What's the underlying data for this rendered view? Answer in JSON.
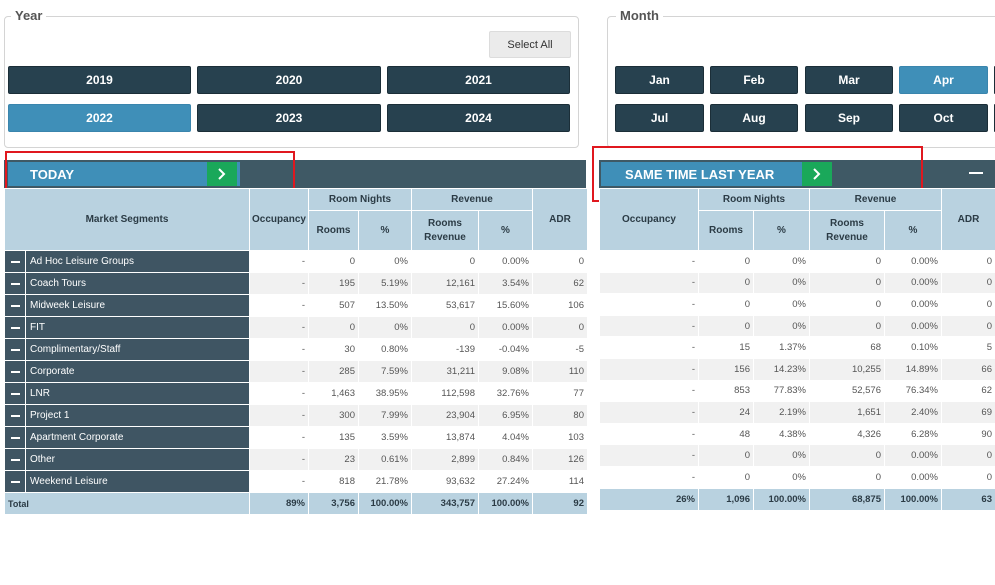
{
  "year": {
    "legend": "Year",
    "select_all": "Select All",
    "buttons": [
      "2019",
      "2020",
      "2021",
      "2022",
      "2023",
      "2024"
    ],
    "active": "2022"
  },
  "month": {
    "legend": "Month",
    "buttons": [
      "Jan",
      "Feb",
      "Mar",
      "Apr",
      "Jul",
      "Aug",
      "Sep",
      "Oct"
    ],
    "active": "Apr"
  },
  "today": {
    "title": "TODAY",
    "headers": {
      "market_segments": "Market Segments",
      "occupancy": "Occupancy",
      "room_nights": "Room Nights",
      "revenue": "Revenue",
      "rooms": "Rooms",
      "pct": "%",
      "rooms_revenue": "Rooms Revenue",
      "adr": "ADR"
    },
    "rows": [
      {
        "segment": "Ad Hoc Leisure Groups",
        "occupancy": "-",
        "rooms": "0",
        "rooms_pct": "0%",
        "revenue": "0",
        "revenue_pct": "0.00%",
        "adr": "0"
      },
      {
        "segment": "Coach Tours",
        "occupancy": "-",
        "rooms": "195",
        "rooms_pct": "5.19%",
        "revenue": "12,161",
        "revenue_pct": "3.54%",
        "adr": "62"
      },
      {
        "segment": "Midweek Leisure",
        "occupancy": "-",
        "rooms": "507",
        "rooms_pct": "13.50%",
        "revenue": "53,617",
        "revenue_pct": "15.60%",
        "adr": "106"
      },
      {
        "segment": "FIT",
        "occupancy": "-",
        "rooms": "0",
        "rooms_pct": "0%",
        "revenue": "0",
        "revenue_pct": "0.00%",
        "adr": "0"
      },
      {
        "segment": "Complimentary/Staff",
        "occupancy": "-",
        "rooms": "30",
        "rooms_pct": "0.80%",
        "revenue": "-139",
        "revenue_pct": "-0.04%",
        "adr": "-5"
      },
      {
        "segment": "Corporate",
        "occupancy": "-",
        "rooms": "285",
        "rooms_pct": "7.59%",
        "revenue": "31,211",
        "revenue_pct": "9.08%",
        "adr": "110"
      },
      {
        "segment": "LNR",
        "occupancy": "-",
        "rooms": "1,463",
        "rooms_pct": "38.95%",
        "revenue": "112,598",
        "revenue_pct": "32.76%",
        "adr": "77"
      },
      {
        "segment": "Project 1",
        "occupancy": "-",
        "rooms": "300",
        "rooms_pct": "7.99%",
        "revenue": "23,904",
        "revenue_pct": "6.95%",
        "adr": "80"
      },
      {
        "segment": "Apartment Corporate",
        "occupancy": "-",
        "rooms": "135",
        "rooms_pct": "3.59%",
        "revenue": "13,874",
        "revenue_pct": "4.04%",
        "adr": "103"
      },
      {
        "segment": "Other",
        "occupancy": "-",
        "rooms": "23",
        "rooms_pct": "0.61%",
        "revenue": "2,899",
        "revenue_pct": "0.84%",
        "adr": "126"
      },
      {
        "segment": "Weekend Leisure",
        "occupancy": "-",
        "rooms": "818",
        "rooms_pct": "21.78%",
        "revenue": "93,632",
        "revenue_pct": "27.24%",
        "adr": "114"
      }
    ],
    "total": {
      "label": "Total",
      "occupancy": "89%",
      "rooms": "3,756",
      "rooms_pct": "100.00%",
      "revenue": "343,757",
      "revenue_pct": "100.00%",
      "adr": "92"
    }
  },
  "stly": {
    "title": "SAME TIME LAST YEAR",
    "headers": {
      "occupancy": "Occupancy",
      "room_nights": "Room Nights",
      "revenue": "Revenue",
      "rooms": "Rooms",
      "pct": "%",
      "rooms_revenue": "Rooms Revenue",
      "adr": "ADR"
    },
    "rows": [
      {
        "occupancy": "-",
        "rooms": "0",
        "rooms_pct": "0%",
        "revenue": "0",
        "revenue_pct": "0.00%",
        "adr": "0"
      },
      {
        "occupancy": "-",
        "rooms": "0",
        "rooms_pct": "0%",
        "revenue": "0",
        "revenue_pct": "0.00%",
        "adr": "0"
      },
      {
        "occupancy": "-",
        "rooms": "0",
        "rooms_pct": "0%",
        "revenue": "0",
        "revenue_pct": "0.00%",
        "adr": "0"
      },
      {
        "occupancy": "-",
        "rooms": "0",
        "rooms_pct": "0%",
        "revenue": "0",
        "revenue_pct": "0.00%",
        "adr": "0"
      },
      {
        "occupancy": "-",
        "rooms": "15",
        "rooms_pct": "1.37%",
        "revenue": "68",
        "revenue_pct": "0.10%",
        "adr": "5"
      },
      {
        "occupancy": "-",
        "rooms": "156",
        "rooms_pct": "14.23%",
        "revenue": "10,255",
        "revenue_pct": "14.89%",
        "adr": "66"
      },
      {
        "occupancy": "-",
        "rooms": "853",
        "rooms_pct": "77.83%",
        "revenue": "52,576",
        "revenue_pct": "76.34%",
        "adr": "62"
      },
      {
        "occupancy": "-",
        "rooms": "24",
        "rooms_pct": "2.19%",
        "revenue": "1,651",
        "revenue_pct": "2.40%",
        "adr": "69"
      },
      {
        "occupancy": "-",
        "rooms": "48",
        "rooms_pct": "4.38%",
        "revenue": "4,326",
        "revenue_pct": "6.28%",
        "adr": "90"
      },
      {
        "occupancy": "-",
        "rooms": "0",
        "rooms_pct": "0%",
        "revenue": "0",
        "revenue_pct": "0.00%",
        "adr": "0"
      },
      {
        "occupancy": "-",
        "rooms": "0",
        "rooms_pct": "0%",
        "revenue": "0",
        "revenue_pct": "0.00%",
        "adr": "0"
      }
    ],
    "total": {
      "occupancy": "26%",
      "rooms": "1,096",
      "rooms_pct": "100.00%",
      "revenue": "68,875",
      "revenue_pct": "100.00%",
      "adr": "63"
    }
  },
  "colors": {
    "dark_button": "#27414f",
    "active_button": "#3f8fb8",
    "arrow_green": "#1aa85a",
    "highlight_red": "#e0181f",
    "header_blue": "#b9d2e0"
  }
}
